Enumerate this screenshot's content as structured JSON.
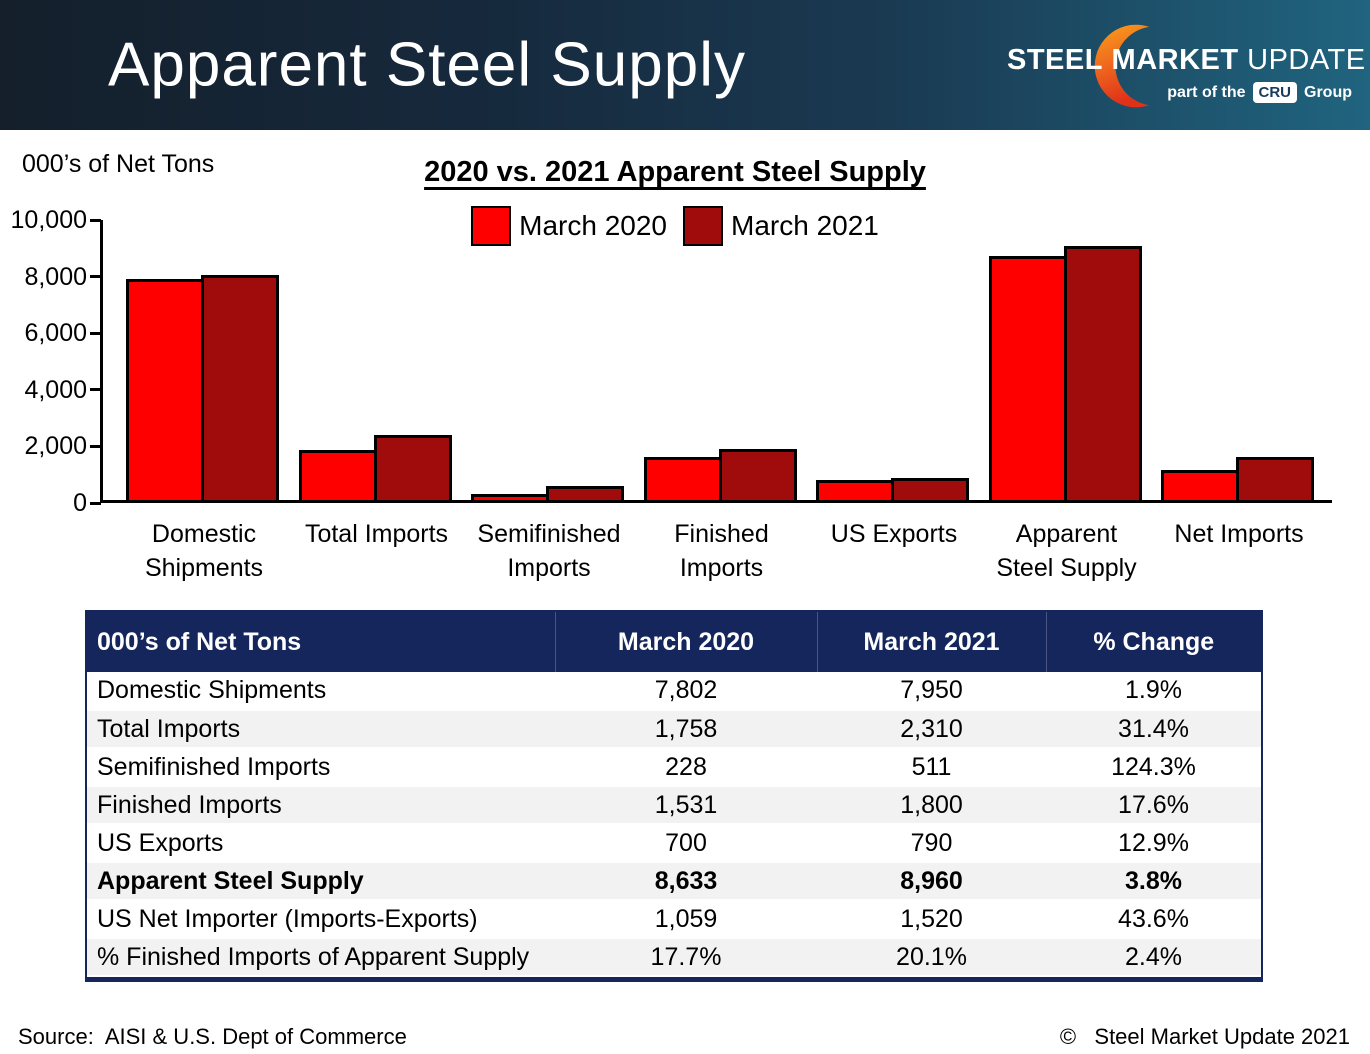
{
  "header": {
    "title": "Apparent Steel Supply",
    "logo": {
      "steel": "STEEL",
      "market": "MARKET",
      "update": "UPDATE",
      "tagline_prefix": "part of the",
      "cru": "CRU",
      "tagline_suffix": "Group",
      "crescent_top_color": "#f9a01b",
      "crescent_bottom_color": "#e03119"
    }
  },
  "chart": {
    "units_label": "000’s of Net Tons",
    "title": "2020 vs. 2021 Apparent Steel Supply",
    "legend": [
      {
        "label": "March 2020",
        "color": "#ff0000"
      },
      {
        "label": "March 2021",
        "color": "#a00b0b"
      }
    ]
  },
  "chart_data": {
    "type": "bar",
    "title": "2020 vs. 2021 Apparent Steel Supply",
    "ylabel": "000's of Net Tons",
    "xlabel": "",
    "ylim": [
      0,
      10000
    ],
    "ytick_values": [
      0,
      2000,
      4000,
      6000,
      8000,
      10000
    ],
    "ytick_labels": [
      "0",
      "2,000",
      "4,000",
      "6,000",
      "8,000",
      "10,000"
    ],
    "grid": false,
    "legend_position": "top-center",
    "categories": [
      [
        "Domestic",
        "Shipments"
      ],
      [
        "Total Imports"
      ],
      [
        "Semifinished",
        "Imports"
      ],
      [
        "Finished",
        "Imports"
      ],
      [
        "US Exports"
      ],
      [
        "Apparent",
        "Steel Supply"
      ],
      [
        "Net Imports"
      ]
    ],
    "series": [
      {
        "name": "March 2020",
        "color": "#ff0000",
        "values": [
          7802,
          1758,
          228,
          1531,
          700,
          8633,
          1059
        ]
      },
      {
        "name": "March 2021",
        "color": "#a00b0b",
        "values": [
          7950,
          2310,
          511,
          1800,
          790,
          8960,
          1520
        ]
      }
    ]
  },
  "table": {
    "headers": [
      "000’s of Net Tons",
      "March 2020",
      "March 2021",
      "% Change"
    ],
    "rows": [
      {
        "label": "Domestic Shipments",
        "m2020": "7,802",
        "m2021": "7,950",
        "change": "1.9%",
        "bold": false
      },
      {
        "label": "Total Imports",
        "m2020": "1,758",
        "m2021": "2,310",
        "change": "31.4%",
        "bold": false
      },
      {
        "label": "Semifinished Imports",
        "m2020": "228",
        "m2021": "511",
        "change": "124.3%",
        "bold": false
      },
      {
        "label": "Finished Imports",
        "m2020": "1,531",
        "m2021": "1,800",
        "change": "17.6%",
        "bold": false
      },
      {
        "label": "US Exports",
        "m2020": "700",
        "m2021": "790",
        "change": "12.9%",
        "bold": false
      },
      {
        "label": "Apparent Steel Supply",
        "m2020": "8,633",
        "m2021": "8,960",
        "change": "3.8%",
        "bold": true
      },
      {
        "label": "US Net Importer (Imports-Exports)",
        "m2020": "1,059",
        "m2021": "1,520",
        "change": "43.6%",
        "bold": false
      },
      {
        "label": "% Finished Imports of Apparent Supply",
        "m2020": "17.7%",
        "m2021": "20.1%",
        "change": "2.4%",
        "bold": false
      }
    ]
  },
  "footer": {
    "source": "Source:  AISI & U.S. Dept of Commerce",
    "copyright": "©   Steel Market Update 2021"
  }
}
